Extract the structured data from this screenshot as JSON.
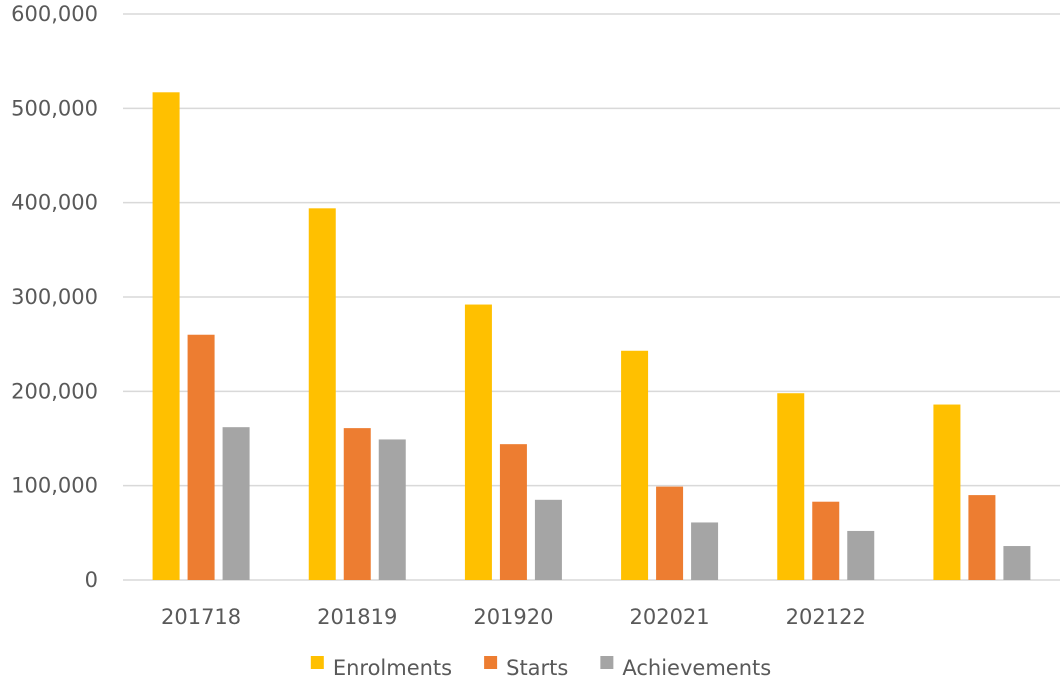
{
  "chart_data": {
    "type": "bar",
    "title": "",
    "xlabel": "",
    "ylabel": "",
    "categories": [
      "201718",
      "201819",
      "201920",
      "202021",
      "202122",
      ""
    ],
    "ylim": [
      0,
      600000
    ],
    "y_ticks": [
      "0",
      "100,000",
      "200,000",
      "300,000",
      "400,000",
      "500,000",
      "600,000"
    ],
    "grid": true,
    "legend_position": "bottom",
    "series": [
      {
        "name": "Enrolments",
        "color": "#ffc000",
        "values": [
          517000,
          394000,
          292000,
          243000,
          198000,
          186000
        ]
      },
      {
        "name": "Starts",
        "color": "#ed7d31",
        "values": [
          260000,
          161000,
          144000,
          99000,
          83000,
          90000
        ]
      },
      {
        "name": "Achievements",
        "color": "#a5a5a5",
        "values": [
          162000,
          149000,
          85000,
          61000,
          52000,
          36000
        ]
      }
    ]
  }
}
